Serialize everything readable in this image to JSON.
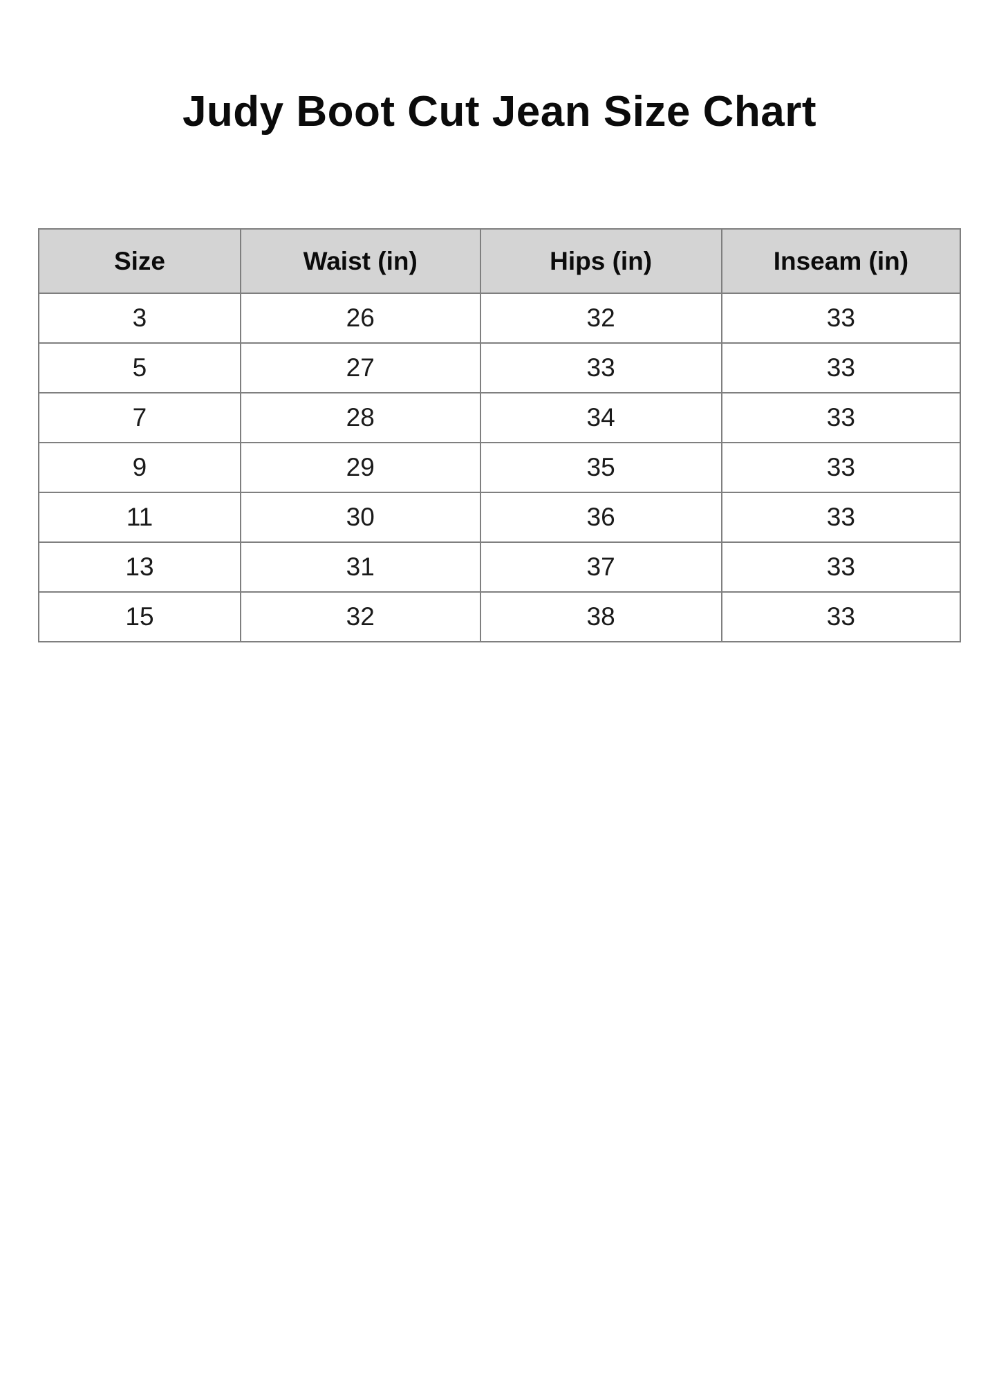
{
  "page": {
    "title": "Judy Boot Cut Jean Size Chart"
  },
  "table": {
    "headers": [
      "Size",
      "Waist (in)",
      "Hips (in)",
      "Inseam (in)"
    ],
    "rows": [
      [
        "3",
        "26",
        "32",
        "33"
      ],
      [
        "5",
        "27",
        "33",
        "33"
      ],
      [
        "7",
        "28",
        "34",
        "33"
      ],
      [
        "9",
        "29",
        "35",
        "33"
      ],
      [
        "11",
        "30",
        "36",
        "33"
      ],
      [
        "13",
        "31",
        "37",
        "33"
      ],
      [
        "15",
        "32",
        "38",
        "33"
      ]
    ]
  },
  "colors": {
    "header_bg": "#d4d4d4",
    "border_color": "#7f7f7f",
    "cell_bg": "#ffffff",
    "text_color": "#0b0b0b"
  }
}
